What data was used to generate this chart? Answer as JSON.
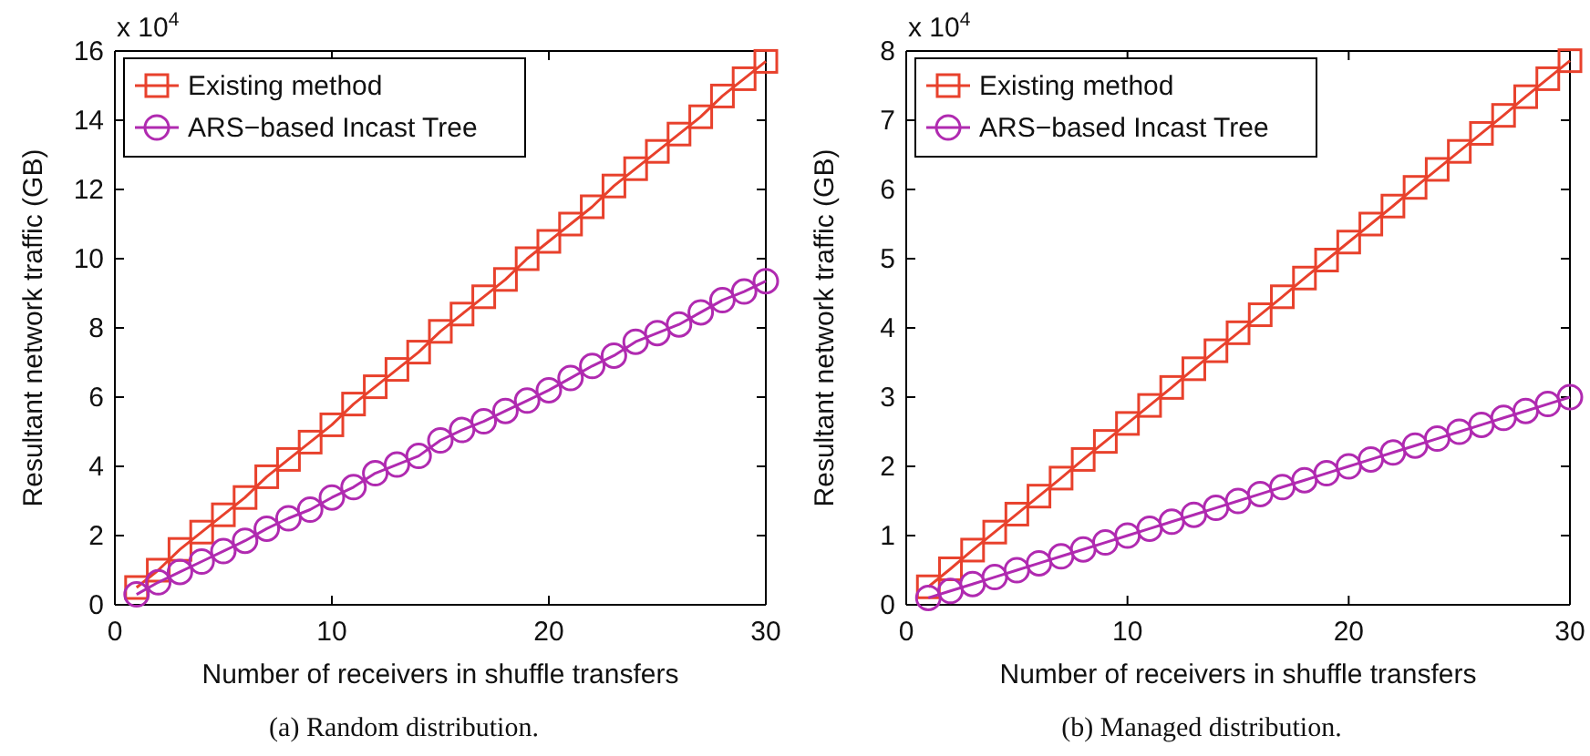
{
  "chart_data": [
    {
      "type": "line",
      "title": "(a)  Random distribution.",
      "xlabel": "Number of receivers in shuffle transfers",
      "ylabel": "Resultant network traffic (GB)",
      "annotations": [
        "x 10$^{4}$"
      ],
      "x": [
        1,
        2,
        3,
        4,
        5,
        6,
        7,
        8,
        9,
        10,
        11,
        12,
        13,
        14,
        15,
        16,
        17,
        18,
        19,
        20,
        21,
        22,
        23,
        24,
        25,
        26,
        27,
        28,
        29,
        30
      ],
      "xlim": [
        0,
        30
      ],
      "xticks": [
        0,
        10,
        20,
        30
      ],
      "ylim": [
        0,
        16
      ],
      "yticks": [
        0,
        2,
        4,
        6,
        8,
        10,
        12,
        14,
        16
      ],
      "grid": false,
      "legend": "top left",
      "series": [
        {
          "name": "Existing method",
          "color": "#e8412c",
          "marker": "square",
          "values": [
            0.5,
            1.0,
            1.6,
            2.1,
            2.6,
            3.1,
            3.7,
            4.2,
            4.7,
            5.2,
            5.8,
            6.3,
            6.8,
            7.3,
            7.9,
            8.4,
            8.9,
            9.4,
            10.0,
            10.5,
            11.0,
            11.5,
            12.1,
            12.6,
            13.1,
            13.6,
            14.1,
            14.7,
            15.2,
            15.7
          ]
        },
        {
          "name": "ARS−based Incast Tree",
          "color": "#b02ab0",
          "marker": "circle",
          "values": [
            0.3,
            0.65,
            0.95,
            1.25,
            1.55,
            1.85,
            2.2,
            2.5,
            2.75,
            3.1,
            3.4,
            3.8,
            4.05,
            4.3,
            4.75,
            5.05,
            5.3,
            5.6,
            5.9,
            6.2,
            6.55,
            6.9,
            7.2,
            7.6,
            7.85,
            8.1,
            8.45,
            8.8,
            9.05,
            9.35
          ]
        }
      ]
    },
    {
      "type": "line",
      "title": "(b)  Managed distribution.",
      "xlabel": "Number of receivers in shuffle transfers",
      "ylabel": "Resultant network traffic (GB)",
      "annotations": [
        "x 10$^{4}$"
      ],
      "x": [
        1,
        2,
        3,
        4,
        5,
        6,
        7,
        8,
        9,
        10,
        11,
        12,
        13,
        14,
        15,
        16,
        17,
        18,
        19,
        20,
        21,
        22,
        23,
        24,
        25,
        26,
        27,
        28,
        29,
        30
      ],
      "xlim": [
        0,
        30
      ],
      "xticks": [
        0,
        10,
        20,
        30
      ],
      "ylim": [
        0,
        8
      ],
      "yticks": [
        0,
        1,
        2,
        3,
        4,
        5,
        6,
        7,
        8
      ],
      "grid": false,
      "legend": "top left",
      "series": [
        {
          "name": "Existing method",
          "color": "#e8412c",
          "marker": "square",
          "values": [
            0.26,
            0.52,
            0.79,
            1.05,
            1.31,
            1.57,
            1.83,
            2.1,
            2.36,
            2.62,
            2.88,
            3.14,
            3.41,
            3.67,
            3.93,
            4.19,
            4.45,
            4.72,
            4.98,
            5.24,
            5.5,
            5.76,
            6.03,
            6.29,
            6.55,
            6.81,
            7.07,
            7.34,
            7.6,
            7.86
          ]
        },
        {
          "name": "ARS−based Incast Tree",
          "color": "#b02ab0",
          "marker": "circle",
          "values": [
            0.1,
            0.2,
            0.3,
            0.4,
            0.5,
            0.6,
            0.7,
            0.8,
            0.9,
            1.0,
            1.1,
            1.2,
            1.3,
            1.4,
            1.5,
            1.6,
            1.7,
            1.8,
            1.9,
            2.0,
            2.1,
            2.2,
            2.3,
            2.4,
            2.5,
            2.6,
            2.7,
            2.8,
            2.9,
            3.0
          ]
        }
      ]
    }
  ]
}
